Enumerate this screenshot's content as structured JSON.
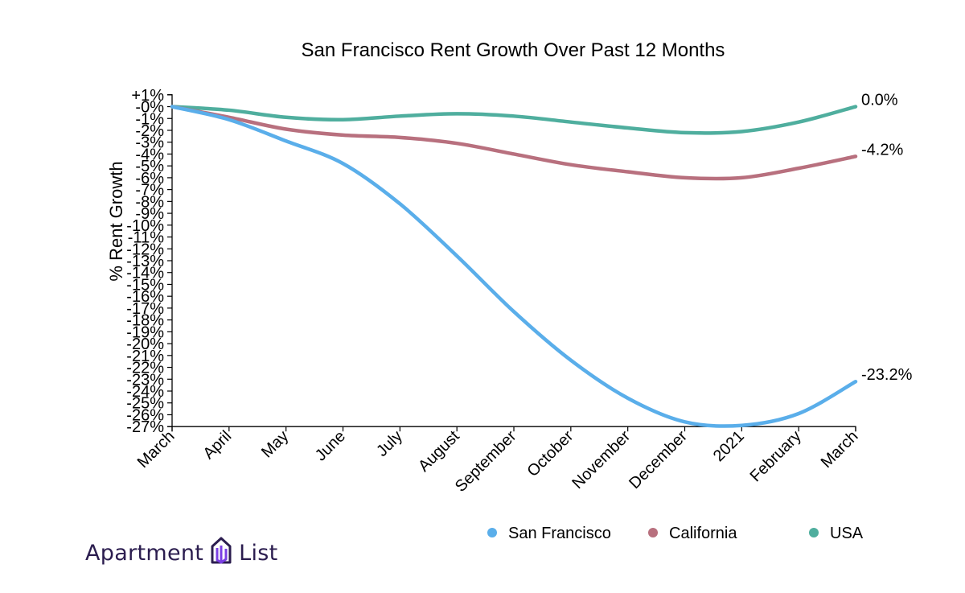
{
  "chart_data": {
    "type": "line",
    "title": "San Francisco Rent Growth Over Past 12 Months",
    "xlabel": "",
    "ylabel": "% Rent Growth",
    "categories": [
      "March",
      "April",
      "May",
      "June",
      "July",
      "August",
      "September",
      "October",
      "November",
      "December",
      "2021",
      "February",
      "March"
    ],
    "ylim": [
      -27,
      1
    ],
    "yticks": [
      "+1%",
      "-0%",
      "-1%",
      "-2%",
      "-3%",
      "-4%",
      "-5%",
      "-6%",
      "-7%",
      "-8%",
      "-9%",
      "-10%",
      "-11%",
      "-12%",
      "-13%",
      "-14%",
      "-15%",
      "-16%",
      "-17%",
      "-18%",
      "-19%",
      "-20%",
      "-21%",
      "-22%",
      "-23%",
      "-24%",
      "-25%",
      "-26%",
      "-27%"
    ],
    "series": [
      {
        "name": "San Francisco",
        "color": "#5aaeea",
        "values": [
          0,
          -1.1,
          -2.9,
          -4.8,
          -8.2,
          -12.6,
          -17.3,
          -21.4,
          -24.6,
          -26.6,
          -26.9,
          -25.9,
          -23.2
        ],
        "end_label": "-23.2%"
      },
      {
        "name": "California",
        "color": "#b8707e",
        "values": [
          0,
          -0.9,
          -1.9,
          -2.4,
          -2.6,
          -3.1,
          -4.0,
          -4.9,
          -5.5,
          -6.0,
          -6.0,
          -5.2,
          -4.2
        ],
        "end_label": "-4.2%"
      },
      {
        "name": "USA",
        "color": "#4fae9e",
        "values": [
          0,
          -0.3,
          -0.9,
          -1.1,
          -0.8,
          -0.6,
          -0.8,
          -1.3,
          -1.8,
          -2.2,
          -2.1,
          -1.3,
          0.0
        ],
        "end_label": "0.0%"
      }
    ]
  },
  "logo": {
    "word1": "Apartment",
    "word2": "List"
  }
}
